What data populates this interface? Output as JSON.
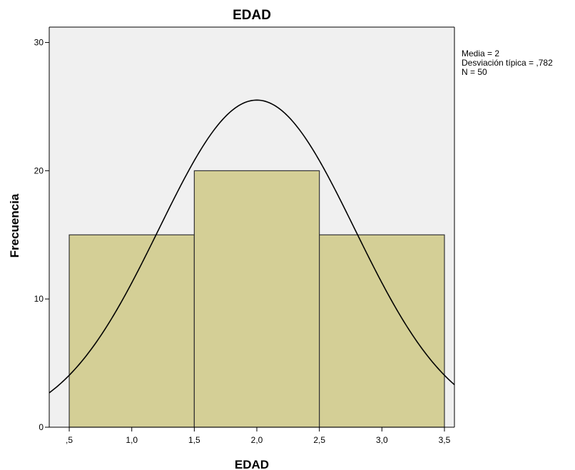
{
  "chart_data": {
    "type": "bar",
    "title": "EDAD",
    "xlabel": "EDAD",
    "ylabel": "Frecuencia",
    "bins": [
      {
        "x0": 0.5,
        "x1": 1.5,
        "value": 15
      },
      {
        "x0": 1.5,
        "x1": 2.5,
        "value": 20
      },
      {
        "x0": 2.5,
        "x1": 3.5,
        "value": 15
      }
    ],
    "xlim": [
      0.34,
      3.58
    ],
    "ylim": [
      0,
      31.2
    ],
    "x_ticks": [
      {
        "value": 0.5,
        "label": ",5"
      },
      {
        "value": 1.0,
        "label": "1,0"
      },
      {
        "value": 1.5,
        "label": "1,5"
      },
      {
        "value": 2.0,
        "label": "2,0"
      },
      {
        "value": 2.5,
        "label": "2,5"
      },
      {
        "value": 3.0,
        "label": "3,0"
      },
      {
        "value": 3.5,
        "label": "3,5"
      }
    ],
    "y_ticks": [
      {
        "value": 0,
        "label": "0"
      },
      {
        "value": 10,
        "label": "10"
      },
      {
        "value": 20,
        "label": "20"
      },
      {
        "value": 30,
        "label": "30"
      }
    ],
    "normal_curve": {
      "mean": 2,
      "sd": 0.782,
      "n": 50,
      "bin_width": 1
    },
    "stats": {
      "media": "Media = 2",
      "desviacion": "Desviación típica = ,782",
      "n": "N = 50"
    },
    "colors": {
      "bar_fill": "#d4cf96",
      "bar_stroke": "#333333",
      "plot_bg": "#f0f0f0",
      "curve": "#000000"
    },
    "grid": false
  }
}
